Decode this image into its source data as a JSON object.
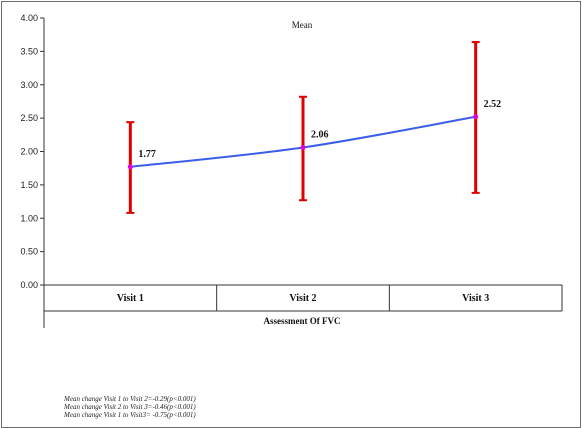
{
  "chart_data": {
    "type": "line",
    "series_name": "Mean",
    "categories": [
      "Visit 1",
      "Visit 2",
      "Visit 3"
    ],
    "series": [
      {
        "name": "Mean",
        "values": [
          1.77,
          2.06,
          2.52
        ],
        "error_low": [
          1.08,
          1.27,
          1.38
        ],
        "error_high": [
          2.44,
          2.82,
          3.64
        ]
      }
    ],
    "data_labels": [
      "1.77",
      "2.06",
      "2.52"
    ],
    "xlabel": "Assessment Of FVC",
    "ylabel": "",
    "ylim": [
      0,
      4
    ],
    "y_ticks": [
      "0.00",
      "0.50",
      "1.00",
      "1.50",
      "2.00",
      "2.50",
      "3.00",
      "3.50",
      "4.00"
    ],
    "line_color": "#3a5ee8",
    "marker_color": "#e000e0",
    "error_color": "#e00000",
    "grid": false
  },
  "notes": [
    "Mean change Visit 1 to Visit 2=-0.29(p<0.001)",
    "Mean change Visit 2 to Visit 3=-0.46(p<0.001)",
    "Mean change Visit 1 to Visit3= -0.75(p<0.001)"
  ]
}
